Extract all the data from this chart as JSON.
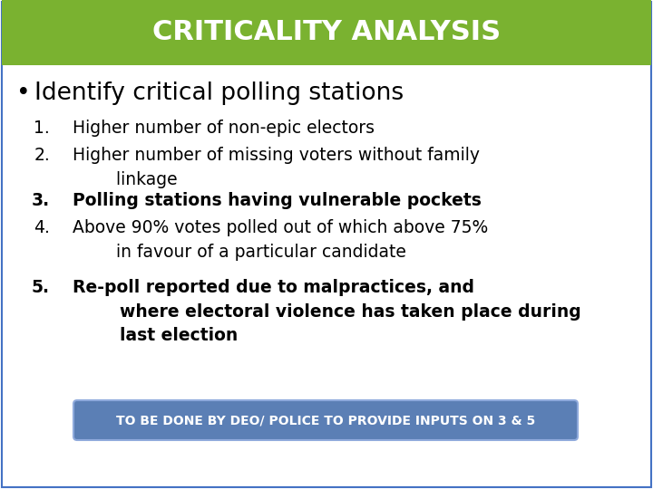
{
  "title": "CRITICALITY ANALYSIS",
  "title_bg_color": "#7ab230",
  "title_text_color": "#ffffff",
  "bg_color": "#ffffff",
  "bullet_point": "Identify critical polling stations",
  "items": [
    {
      "num": "1.",
      "text": "Higher number of non-epic electors",
      "bold": false
    },
    {
      "num": "2.",
      "text": "Higher number of missing voters without family\n     linkage",
      "bold": false
    },
    {
      "num": "3.",
      "text": "Polling stations having vulnerable pockets",
      "bold": true
    },
    {
      "num": "4.",
      "text": "Above 90% votes polled out of which above 75%\n     in favour of a particular candidate",
      "bold": false
    },
    {
      "num": "5.",
      "text": "Re-poll reported due to malpractices, and\n     where electoral violence has taken place during\n     last election",
      "bold": true
    }
  ],
  "footer_text": "TO BE DONE BY DEO/ POLICE TO PROVIDE INPUTS ON 3 & 5",
  "footer_bg_color": "#5b7fb5",
  "footer_text_color": "#ffffff",
  "border_color": "#4472c4",
  "title_fontsize": 22,
  "bullet_fontsize": 19,
  "item_fontsize": 13.5
}
